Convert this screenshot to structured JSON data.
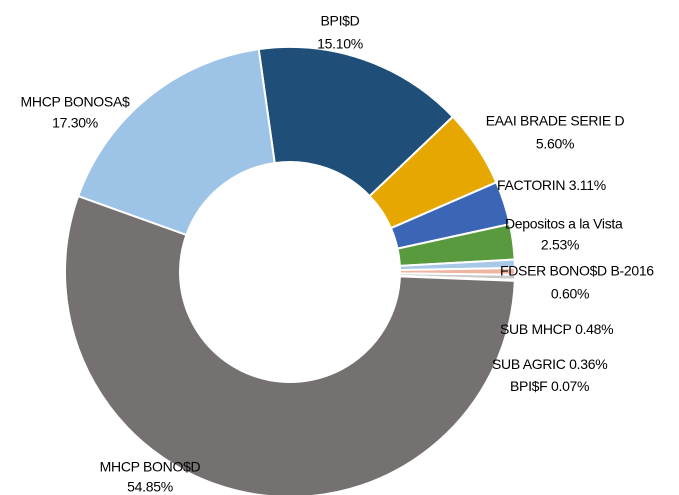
{
  "chart_data": {
    "type": "donut",
    "categories": [
      "BPI$D",
      "EAAI BRADE SERIE D",
      "FACTORIN",
      "Depositos a la Vista",
      "FDSER BONO$D B-2016",
      "SUB MHCP",
      "SUB AGRIC",
      "BPI$F",
      "MHCP BONO$D",
      "MHCP BONOSA$"
    ],
    "values": [
      15.1,
      5.6,
      3.11,
      2.53,
      0.6,
      0.48,
      0.36,
      0.07,
      54.85,
      17.3
    ],
    "value_labels": [
      "15.10%",
      "5.60%",
      "3.11%",
      "2.53%",
      "0.60%",
      "0.48%",
      "0.36%",
      "0.07%",
      "54.85%",
      "17.30%"
    ],
    "colors": [
      "#1f4e79",
      "#e6a800",
      "#3a66b5",
      "#5a9a3e",
      "#a8c8e8",
      "#f0b4a0",
      "#c8c8c8",
      "#e8c870",
      "#767171",
      "#9dc3e6"
    ]
  }
}
